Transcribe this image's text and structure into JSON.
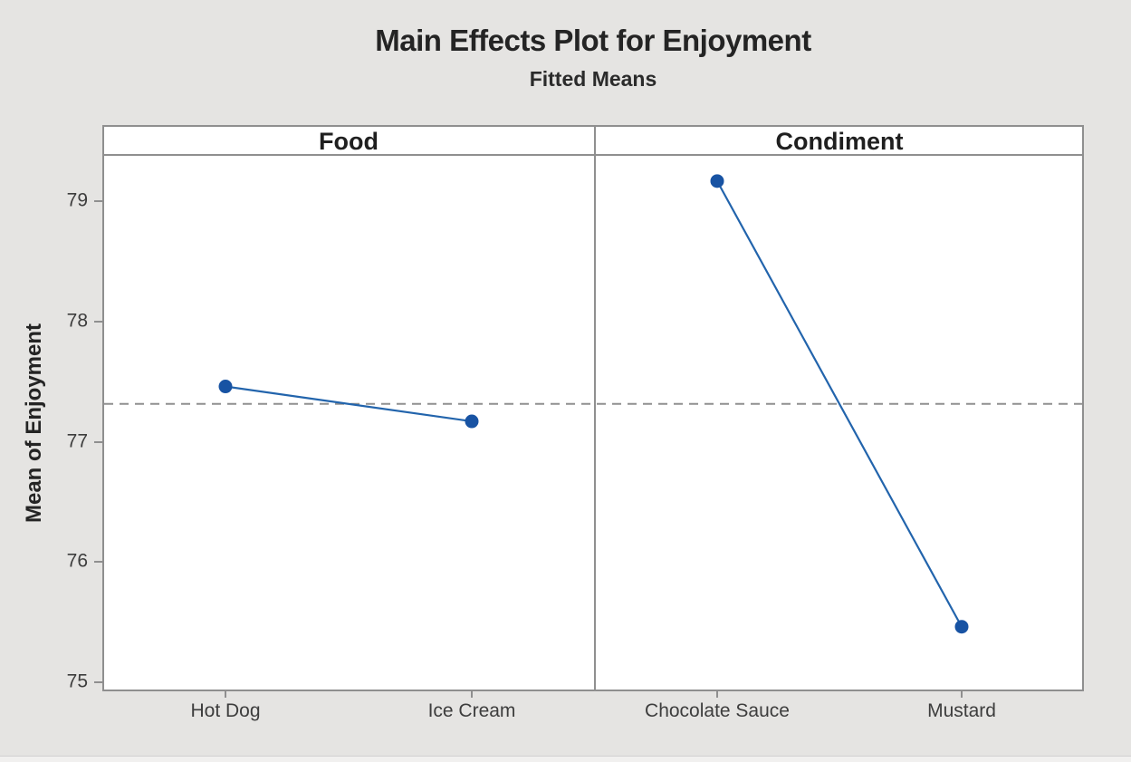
{
  "chart_data": {
    "type": "line",
    "title": "Main Effects Plot for Enjoyment",
    "subtitle": "Fitted Means",
    "ylabel": "Mean of Enjoyment",
    "ylim": [
      74.93,
      79.38
    ],
    "yticks": [
      75,
      76,
      77,
      78,
      79
    ],
    "reference_line_mean": 77.315,
    "panels": [
      {
        "label": "Food",
        "categories": [
          "Hot Dog",
          "Ice Cream"
        ],
        "values": [
          77.46,
          77.17
        ]
      },
      {
        "label": "Condiment",
        "categories": [
          "Chocolate Sauce",
          "Mustard"
        ],
        "values": [
          79.17,
          75.46
        ]
      }
    ],
    "legend": "none",
    "grid": "off",
    "colors": {
      "series_line": "#2264ac",
      "series_marker": "#1853a3",
      "reference_line": "#909090",
      "frame_border": "#8f8f8f",
      "plot_background": "#ffffff",
      "canvas_background": "#e5e4e2",
      "text": "#242424"
    }
  }
}
